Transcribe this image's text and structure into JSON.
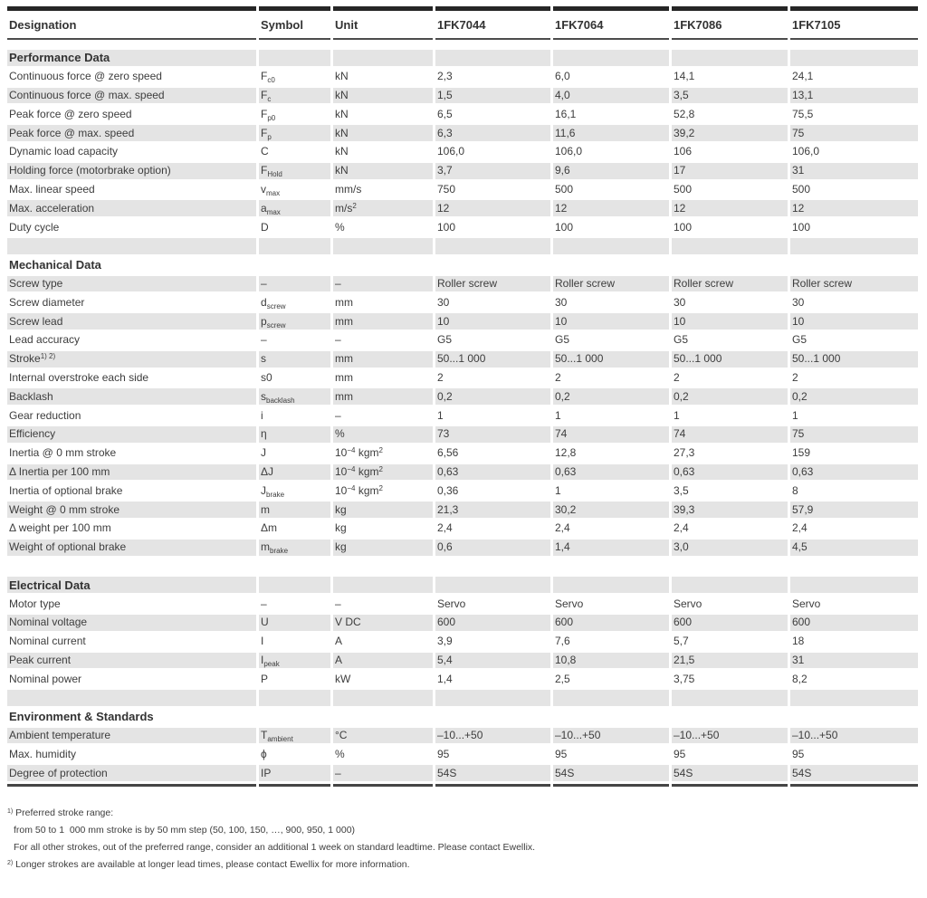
{
  "table": {
    "columns": [
      "Designation",
      "Symbol",
      "Unit",
      "1FK7044",
      "1FK7064",
      "1FK7086",
      "1FK7105"
    ],
    "sections": [
      {
        "title": "Performance Data",
        "rows": [
          {
            "designation": "Continuous force @ zero speed",
            "symbol": "F_{c0}",
            "unit": "kN",
            "values": [
              "2,3",
              "6,0",
              "14,1",
              "24,1"
            ]
          },
          {
            "designation": "Continuous force @ max. speed",
            "symbol": "F_{c}",
            "unit": "kN",
            "values": [
              "1,5",
              "4,0",
              "3,5",
              "13,1"
            ]
          },
          {
            "designation": "Peak force @ zero speed",
            "symbol": "F_{p0}",
            "unit": "kN",
            "values": [
              "6,5",
              "16,1",
              "52,8",
              "75,5"
            ]
          },
          {
            "designation": "Peak force @ max. speed",
            "symbol": "F_{p}",
            "unit": "kN",
            "values": [
              "6,3",
              "11,6",
              "39,2",
              "75"
            ]
          },
          {
            "designation": "Dynamic load capacity",
            "symbol": "C",
            "unit": "kN",
            "values": [
              "106,0",
              "106,0",
              "106",
              "106,0"
            ]
          },
          {
            "designation": "Holding force (motorbrake option)",
            "symbol": "F_{Hold}",
            "unit": "kN",
            "values": [
              "3,7",
              "9,6",
              "17",
              "31"
            ]
          },
          {
            "designation": "Max. linear speed",
            "symbol": "v_{max}",
            "unit": "mm/s",
            "values": [
              "750",
              "500",
              "500",
              "500"
            ]
          },
          {
            "designation": "Max. acceleration",
            "symbol": "a_{max}",
            "unit": "m/s^{2}",
            "values": [
              "12",
              "12",
              "12",
              "12"
            ]
          },
          {
            "designation": "Duty cycle",
            "symbol": "D",
            "unit": "%",
            "values": [
              "100",
              "100",
              "100",
              "100"
            ]
          }
        ]
      },
      {
        "title": "Mechanical Data",
        "rows": [
          {
            "designation": "Screw type",
            "symbol": "–",
            "unit": "–",
            "values": [
              "Roller screw",
              "Roller screw",
              "Roller screw",
              "Roller screw"
            ]
          },
          {
            "designation": "Screw diameter",
            "symbol": "d_{screw}",
            "unit": "mm",
            "values": [
              "30",
              "30",
              "30",
              "30"
            ]
          },
          {
            "designation": "Screw lead",
            "symbol": "p_{screw}",
            "unit": "mm",
            "values": [
              "10",
              "10",
              "10",
              "10"
            ]
          },
          {
            "designation": "Lead accuracy",
            "symbol": "–",
            "unit": "–",
            "values": [
              "G5",
              "G5",
              "G5",
              "G5"
            ]
          },
          {
            "designation": "Stroke^{1) 2)}",
            "symbol": "s",
            "unit": "mm",
            "values": [
              "50...1 000",
              "50...1 000",
              "50...1 000",
              "50...1 000"
            ]
          },
          {
            "designation": "Internal overstroke each side",
            "symbol": "s0",
            "unit": "mm",
            "values": [
              "2",
              "2",
              "2",
              "2"
            ]
          },
          {
            "designation": "Backlash",
            "symbol": "s_{backlash}",
            "unit": "mm",
            "values": [
              "0,2",
              "0,2",
              "0,2",
              "0,2"
            ]
          },
          {
            "designation": "Gear reduction",
            "symbol": "i",
            "unit": "–",
            "values": [
              "1",
              "1",
              "1",
              "1"
            ]
          },
          {
            "designation": "Efficiency",
            "symbol": "η",
            "unit": "%",
            "values": [
              "73",
              "74",
              "74",
              "75"
            ]
          },
          {
            "designation": "Inertia @ 0 mm stroke",
            "symbol": "J",
            "unit": "10^{−4} kgm^{2}",
            "values": [
              "6,56",
              "12,8",
              "27,3",
              "159"
            ]
          },
          {
            "designation": "Δ Inertia per 100 mm",
            "symbol": "ΔJ",
            "unit": "10^{−4} kgm^{2}",
            "values": [
              "0,63",
              "0,63",
              "0,63",
              "0,63"
            ]
          },
          {
            "designation": "Inertia of optional brake",
            "symbol": "J_{brake}",
            "unit": "10^{−4} kgm^{2}",
            "values": [
              "0,36",
              "1",
              "3,5",
              "8"
            ]
          },
          {
            "designation": "Weight @ 0 mm stroke",
            "symbol": "m",
            "unit": "kg",
            "values": [
              "21,3",
              "30,2",
              "39,3",
              "57,9"
            ]
          },
          {
            "designation": "Δ weight per 100 mm",
            "symbol": "Δm",
            "unit": "kg",
            "values": [
              "2,4",
              "2,4",
              "2,4",
              "2,4"
            ]
          },
          {
            "designation": "Weight of optional brake",
            "symbol": "m_{brake}",
            "unit": "kg",
            "values": [
              "0,6",
              "1,4",
              "3,0",
              "4,5"
            ]
          }
        ]
      },
      {
        "title": "Electrical Data",
        "rows": [
          {
            "designation": "Motor type",
            "symbol": "–",
            "unit": "–",
            "values": [
              "Servo",
              "Servo",
              "Servo",
              "Servo"
            ]
          },
          {
            "designation": "Nominal voltage",
            "symbol": "U",
            "unit": "V DC",
            "values": [
              "600",
              "600",
              "600",
              "600"
            ]
          },
          {
            "designation": "Nominal current",
            "symbol": "I",
            "unit": "A",
            "values": [
              "3,9",
              "7,6",
              "5,7",
              "18"
            ]
          },
          {
            "designation": "Peak current",
            "symbol": "I_{peak}",
            "unit": "A",
            "values": [
              "5,4",
              "10,8",
              "21,5",
              "31"
            ]
          },
          {
            "designation": "Nominal power",
            "symbol": "P",
            "unit": "kW",
            "values": [
              "1,4",
              "2,5",
              "3,75",
              "8,2"
            ]
          }
        ]
      },
      {
        "title": "Environment & Standards",
        "rows": [
          {
            "designation": "Ambient temperature",
            "symbol": "T_{ambient}",
            "unit": "°C",
            "values": [
              "–10...+50",
              "–10...+50",
              "–10...+50",
              "–10...+50"
            ]
          },
          {
            "designation": "Max. humidity",
            "symbol": "ϕ",
            "unit": "%",
            "values": [
              "95",
              "95",
              "95",
              "95"
            ]
          },
          {
            "designation": "Degree of protection",
            "symbol": "IP",
            "unit": "–",
            "values": [
              "54S",
              "54S",
              "54S",
              "54S"
            ]
          }
        ]
      }
    ]
  },
  "footnotes": [
    {
      "sup": "1)",
      "indent": false,
      "text": "Preferred stroke range:"
    },
    {
      "sup": "",
      "indent": true,
      "text": "from 50 to 1  000 mm stroke is by 50 mm step (50, 100, 150, …, 900, 950, 1 000)"
    },
    {
      "sup": "",
      "indent": true,
      "text": "For all other strokes, out of the preferred range, consider an additional 1 week on standard leadtime. Please contact Ewellix."
    },
    {
      "sup": "2)",
      "indent": false,
      "text": "Longer strokes are available at longer lead times, please contact Ewellix for more information."
    }
  ],
  "colors": {
    "stripe_gray": "#e4e4e4",
    "text": "#3d3d3d",
    "top_bar": "#262626",
    "header_rule": "#4c4c4c",
    "bottom_rule": "#454545"
  }
}
